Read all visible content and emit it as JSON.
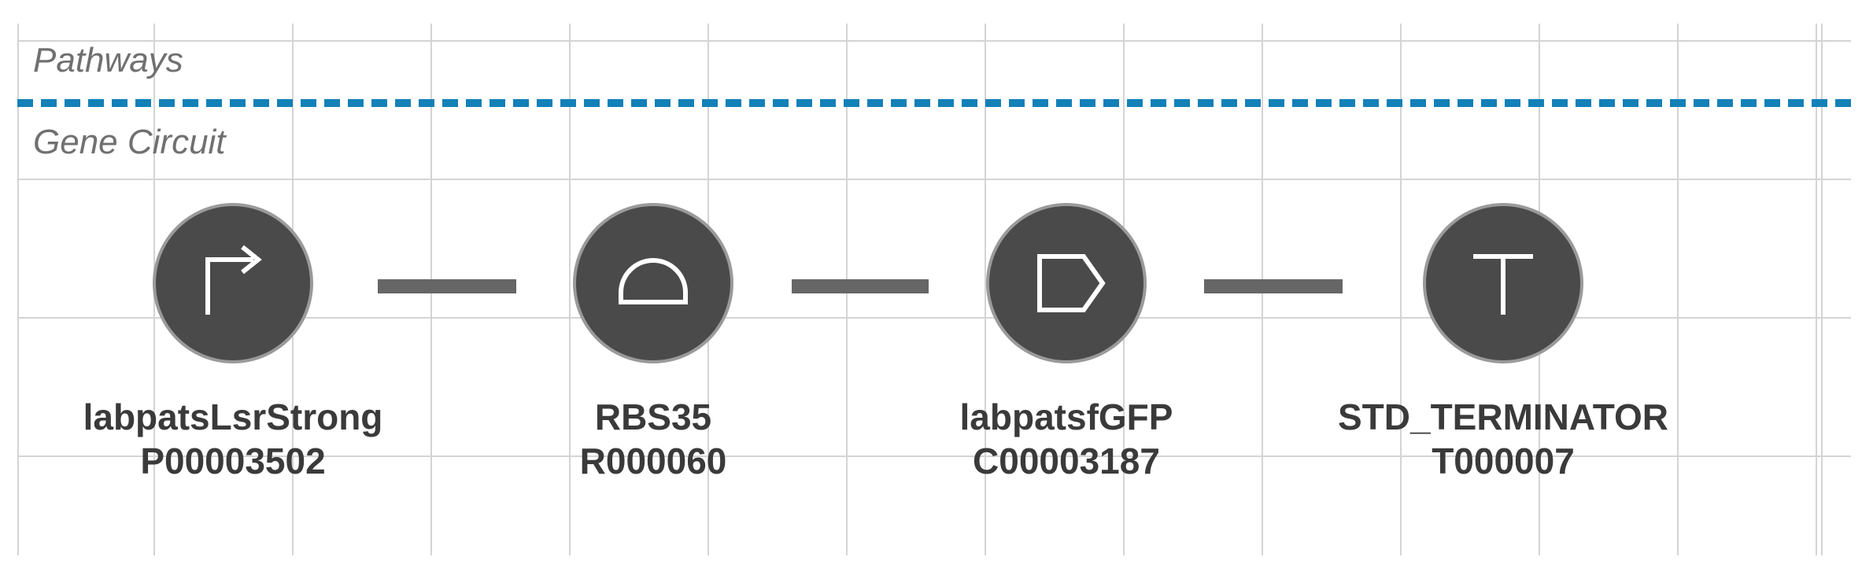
{
  "lanes": {
    "pathways": "Pathways",
    "gene_circuit": "Gene Circuit"
  },
  "parts": [
    {
      "name": "labpatsLsrStrong",
      "id": "P00003502",
      "icon": "promoter-icon"
    },
    {
      "name": "RBS35",
      "id": "R000060",
      "icon": "rbs-icon"
    },
    {
      "name": "labpatsfGFP",
      "id": "C00003187",
      "icon": "cds-icon"
    },
    {
      "name": "STD_TERMINATOR",
      "id": "T000007",
      "icon": "terminator-icon"
    }
  ],
  "colors": {
    "node_fill": "#4a4a4a",
    "node_ring": "#9a9a9a",
    "connector": "#666666",
    "lane_divider": "#1380b8",
    "grid": "#d4d4d4",
    "caption_text": "#3a3a3a",
    "lane_label": "#707070"
  }
}
